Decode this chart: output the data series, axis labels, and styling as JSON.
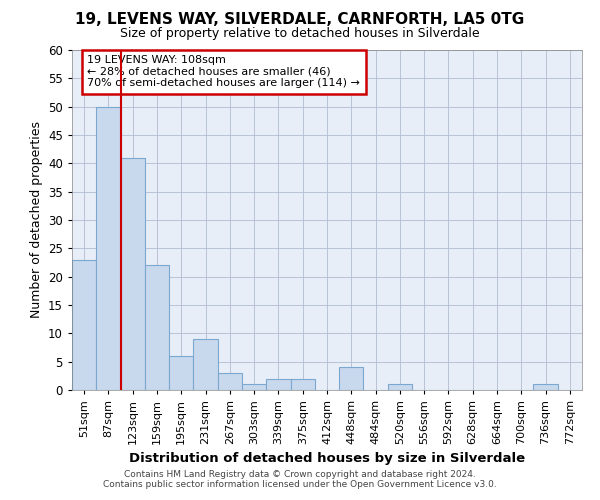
{
  "title": "19, LEVENS WAY, SILVERDALE, CARNFORTH, LA5 0TG",
  "subtitle": "Size of property relative to detached houses in Silverdale",
  "xlabel": "Distribution of detached houses by size in Silverdale",
  "ylabel": "Number of detached properties",
  "bar_color": "#c8d8ed",
  "bar_edge_color": "#7ba8d0",
  "background_color": "#e8eef8",
  "categories": [
    "51sqm",
    "87sqm",
    "123sqm",
    "159sqm",
    "195sqm",
    "231sqm",
    "267sqm",
    "303sqm",
    "339sqm",
    "375sqm",
    "412sqm",
    "448sqm",
    "484sqm",
    "520sqm",
    "556sqm",
    "592sqm",
    "628sqm",
    "664sqm",
    "700sqm",
    "736sqm",
    "772sqm"
  ],
  "values": [
    23,
    50,
    41,
    22,
    6,
    9,
    3,
    1,
    2,
    2,
    0,
    4,
    0,
    1,
    0,
    0,
    0,
    0,
    0,
    1,
    0
  ],
  "ylim": [
    0,
    60
  ],
  "yticks": [
    0,
    5,
    10,
    15,
    20,
    25,
    30,
    35,
    40,
    45,
    50,
    55,
    60
  ],
  "property_line_x": 2,
  "annotation_title": "19 LEVENS WAY: 108sqm",
  "annotation_line1": "← 28% of detached houses are smaller (46)",
  "annotation_line2": "70% of semi-detached houses are larger (114) →",
  "annotation_box_color": "#ffffff",
  "annotation_box_edge": "#cc0000",
  "property_line_color": "#cc0000",
  "footer1": "Contains HM Land Registry data © Crown copyright and database right 2024.",
  "footer2": "Contains public sector information licensed under the Open Government Licence v3.0."
}
